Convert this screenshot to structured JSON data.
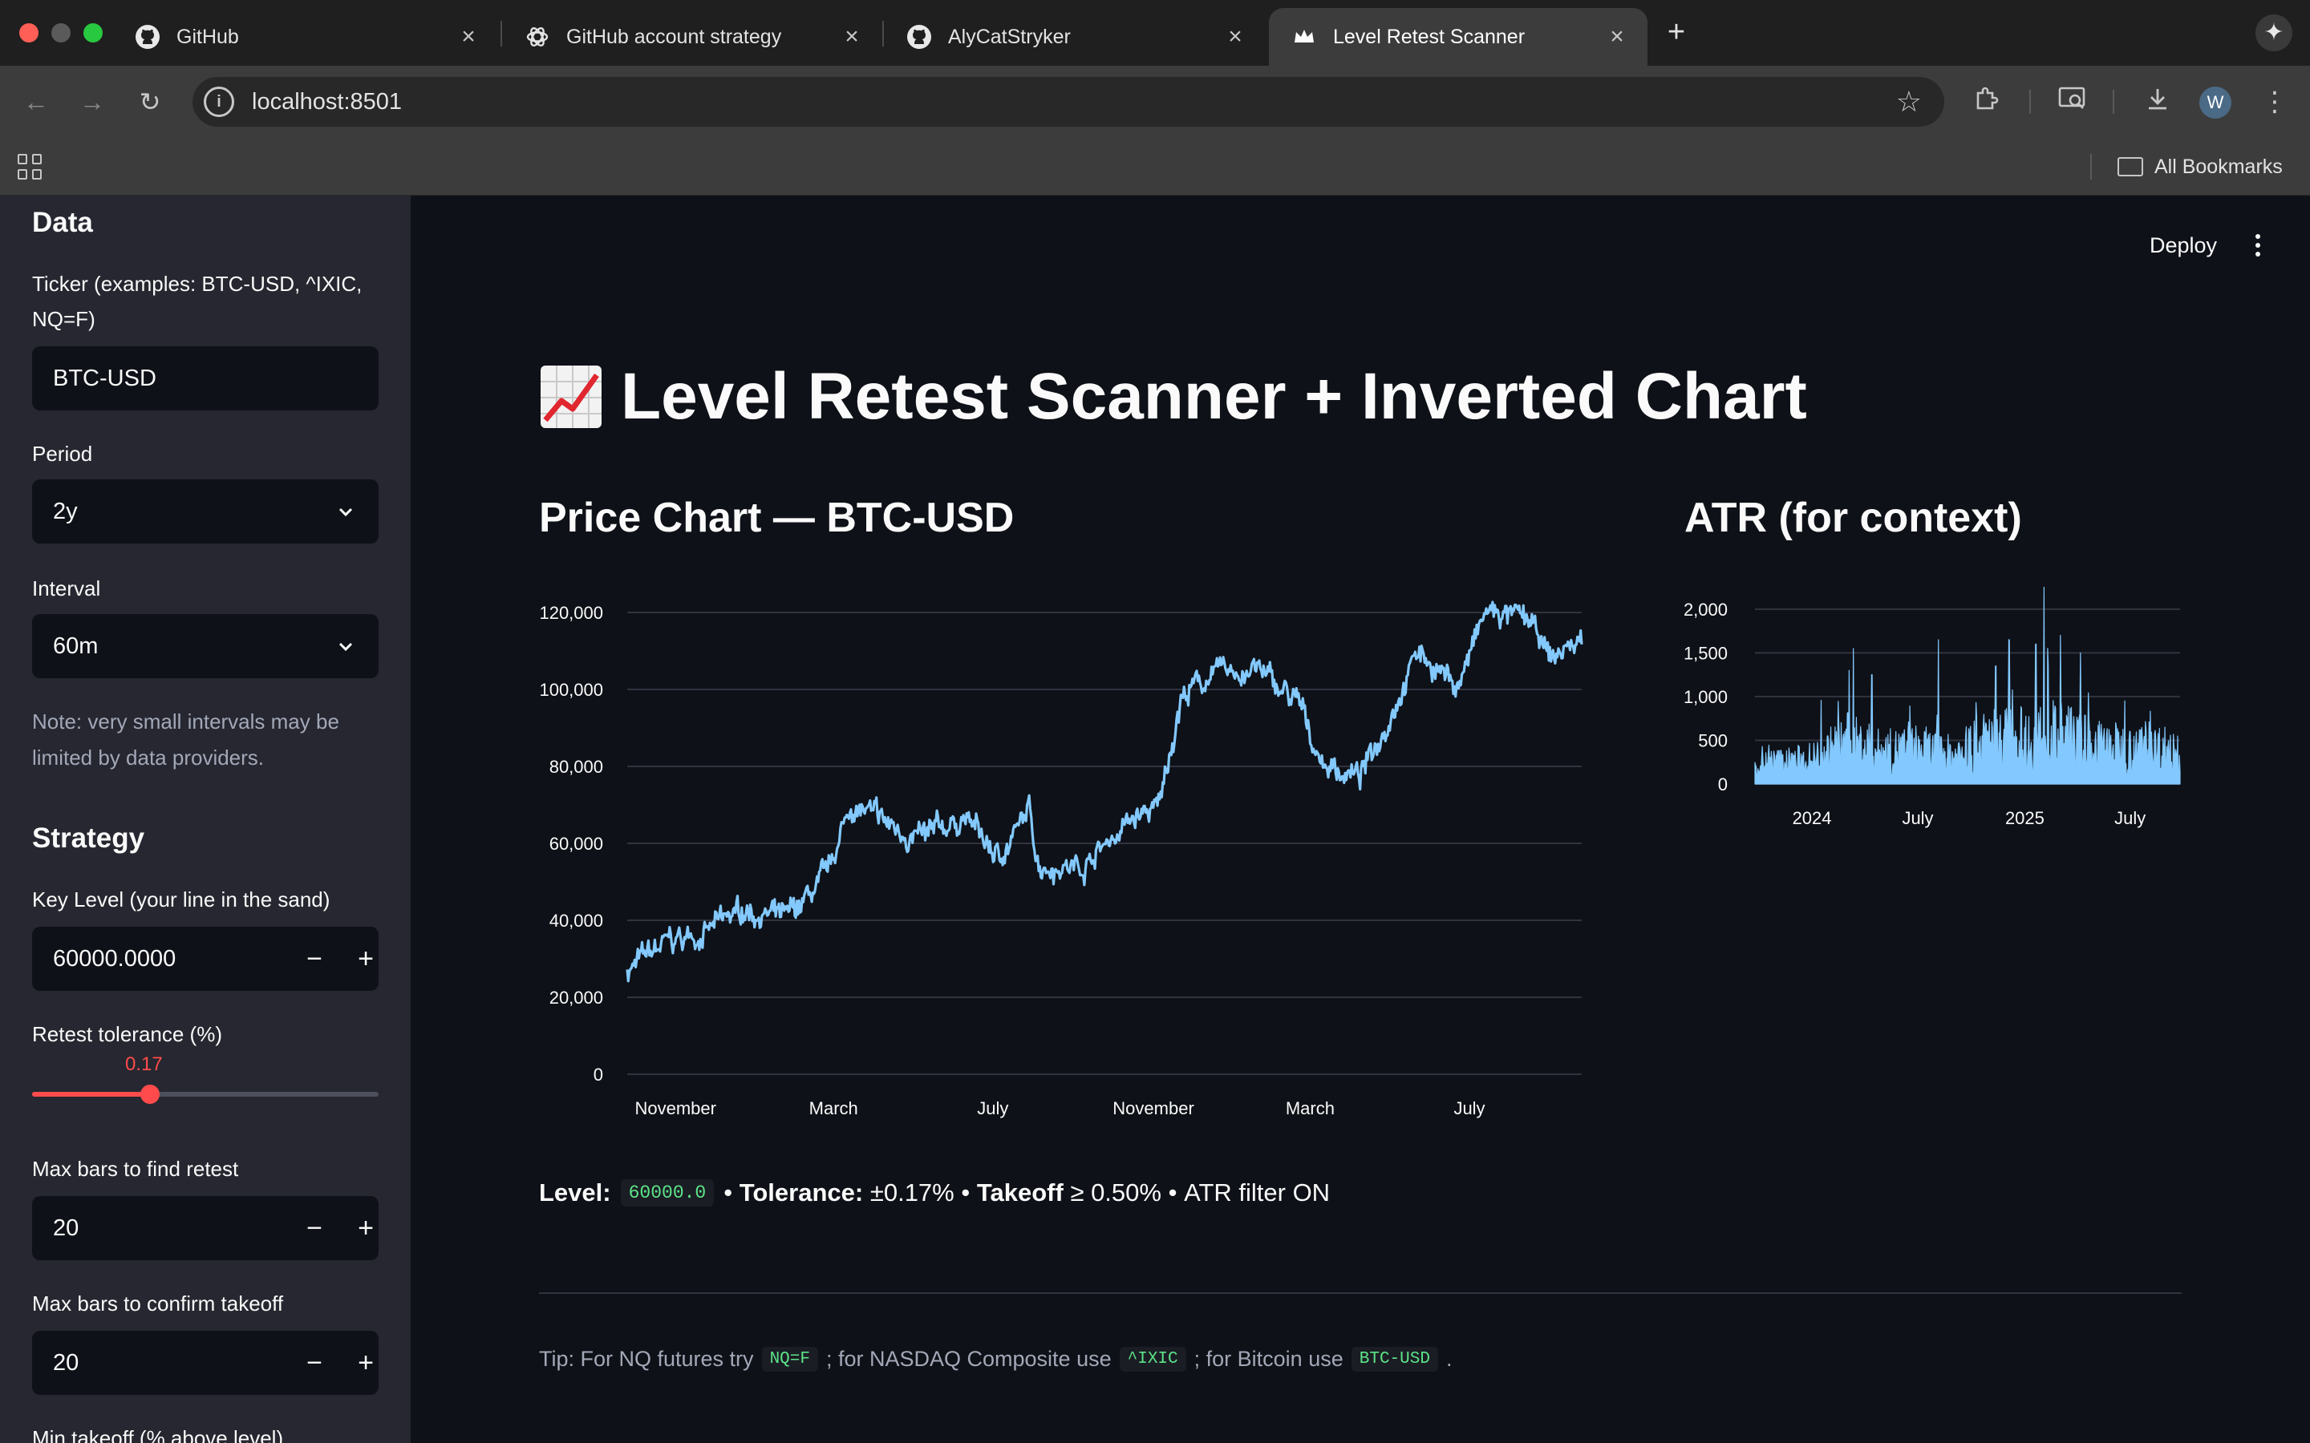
{
  "browser": {
    "tabs": [
      {
        "title": "GitHub",
        "icon": "github-icon"
      },
      {
        "title": "GitHub account strategy",
        "icon": "openai-icon"
      },
      {
        "title": "AlyCatStryker",
        "icon": "github-icon"
      },
      {
        "title": "Level Retest Scanner",
        "icon": "streamlit-crown-icon",
        "active": true
      }
    ],
    "url": "localhost:8501",
    "profile_initial": "W",
    "bookmarks_label": "All Bookmarks"
  },
  "sidebar": {
    "data_heading": "Data",
    "ticker": {
      "label": "Ticker (examples: BTC-USD, ^IXIC, NQ=F)",
      "value": "BTC-USD"
    },
    "period": {
      "label": "Period",
      "value": "2y"
    },
    "interval": {
      "label": "Interval",
      "value": "60m"
    },
    "interval_note": "Note: very small intervals may be limited by data providers.",
    "strategy_heading": "Strategy",
    "key_level": {
      "label": "Key Level (your line in the sand)",
      "value": "60000.0000"
    },
    "retest_tolerance": {
      "label": "Retest tolerance (%)",
      "value": "0.17",
      "fraction": 0.34
    },
    "max_bars_retest": {
      "label": "Max bars to find retest",
      "value": "20"
    },
    "max_bars_takeoff": {
      "label": "Max bars to confirm takeoff",
      "value": "20"
    },
    "min_takeoff": {
      "label": "Min takeoff (% above level)"
    }
  },
  "header": {
    "deploy_label": "Deploy"
  },
  "main": {
    "title": "Level Retest Scanner + Inverted Chart",
    "title_icon": "chart-increasing-icon",
    "price_chart_title": "Price Chart — BTC-USD",
    "atr_chart_title": "ATR (for context)",
    "summary": {
      "level_label": "Level:",
      "level_value": "60000.0",
      "tolerance_label": "Tolerance:",
      "tolerance_value": "±0.17%",
      "takeoff_label": "Takeoff",
      "takeoff_value": "≥ 0.50%",
      "atr_text": "ATR filter ON",
      "sep": "•"
    },
    "tip": {
      "t1": "Tip: For NQ futures try",
      "c1": "NQ=F",
      "t2": "; for NASDAQ Composite use",
      "c2": "^IXIC",
      "t3": "; for Bitcoin use",
      "c3": "BTC-USD",
      "t4": "."
    }
  },
  "chart_data": [
    {
      "type": "line",
      "title": "Price Chart — BTC-USD",
      "color": "#83c9ff",
      "ylim": [
        0,
        125000
      ],
      "y_ticks": [
        0,
        20000,
        40000,
        60000,
        80000,
        100000,
        120000
      ],
      "y_tick_labels": [
        "0",
        "20,000",
        "40,000",
        "60,000",
        "80,000",
        "100,000",
        "120,000"
      ],
      "x_range": [
        "2023-09-25",
        "2025-09-25"
      ],
      "x_ticks": [
        {
          "date": "2023-11-01",
          "label": "November"
        },
        {
          "date": "2024-03-01",
          "label": "March"
        },
        {
          "date": "2024-07-01",
          "label": "July"
        },
        {
          "date": "2024-11-01",
          "label": "November"
        },
        {
          "date": "2025-03-01",
          "label": "March"
        },
        {
          "date": "2025-07-01",
          "label": "July"
        }
      ],
      "grid": true,
      "series": [
        {
          "x": [
            "2023-09-25",
            "2023-10-25",
            "2023-11-25",
            "2023-12-25",
            "2024-01-25",
            "2024-02-25",
            "2024-03-14",
            "2024-04-15",
            "2024-05-10",
            "2024-06-10",
            "2024-07-05",
            "2024-07-29",
            "2024-08-05",
            "2024-09-06",
            "2024-10-15",
            "2024-11-05",
            "2024-11-22",
            "2024-12-17",
            "2025-01-20",
            "2025-02-20",
            "2025-03-10",
            "2025-04-08",
            "2025-04-20",
            "2025-05-22",
            "2025-06-22",
            "2025-07-14",
            "2025-08-14",
            "2025-09-01",
            "2025-09-25"
          ],
          "y": [
            27000,
            34000,
            37000,
            43000,
            40000,
            51000,
            70000,
            64000,
            61000,
            67000,
            56000,
            68000,
            55000,
            54000,
            66000,
            69000,
            98000,
            104000,
            105000,
            96000,
            81000,
            77000,
            85000,
            110000,
            101000,
            120000,
            118000,
            108000,
            113000
          ],
          "noise_amplitude": 1800
        }
      ]
    },
    {
      "type": "area",
      "title": "ATR (for context)",
      "color": "#83c9ff",
      "ylim": [
        0,
        2200
      ],
      "y_ticks": [
        0,
        500,
        1000,
        1500,
        2000
      ],
      "y_tick_labels": [
        "0",
        "500",
        "1,000",
        "1,500",
        "2,000"
      ],
      "x_range": [
        "2023-09-25",
        "2025-09-25"
      ],
      "x_ticks": [
        {
          "date": "2024-01-01",
          "label": "2024"
        },
        {
          "date": "2024-07-01",
          "label": "July"
        },
        {
          "date": "2025-01-01",
          "label": "2025"
        },
        {
          "date": "2025-07-01",
          "label": "July"
        }
      ],
      "grid": true,
      "baseline_by_month": [
        [
          "2023-09",
          200
        ],
        [
          "2023-11",
          250
        ],
        [
          "2024-01",
          300
        ],
        [
          "2024-03",
          550
        ],
        [
          "2024-05",
          400
        ],
        [
          "2024-07",
          450
        ],
        [
          "2024-09",
          350
        ],
        [
          "2024-11",
          600
        ],
        [
          "2025-01",
          600
        ],
        [
          "2025-03",
          650
        ],
        [
          "2025-05",
          500
        ],
        [
          "2025-07",
          450
        ],
        [
          "2025-09",
          450
        ]
      ],
      "spikes": [
        [
          "2024-03-05",
          1300
        ],
        [
          "2024-03-12",
          1550
        ],
        [
          "2024-04-13",
          1250
        ],
        [
          "2024-08-05",
          1650
        ],
        [
          "2024-11-12",
          1350
        ],
        [
          "2024-12-05",
          1650
        ],
        [
          "2025-01-20",
          1600
        ],
        [
          "2025-02-03",
          2250
        ],
        [
          "2025-03-03",
          1700
        ],
        [
          "2025-04-07",
          1500
        ],
        [
          "2025-06-22",
          950
        ]
      ]
    }
  ]
}
